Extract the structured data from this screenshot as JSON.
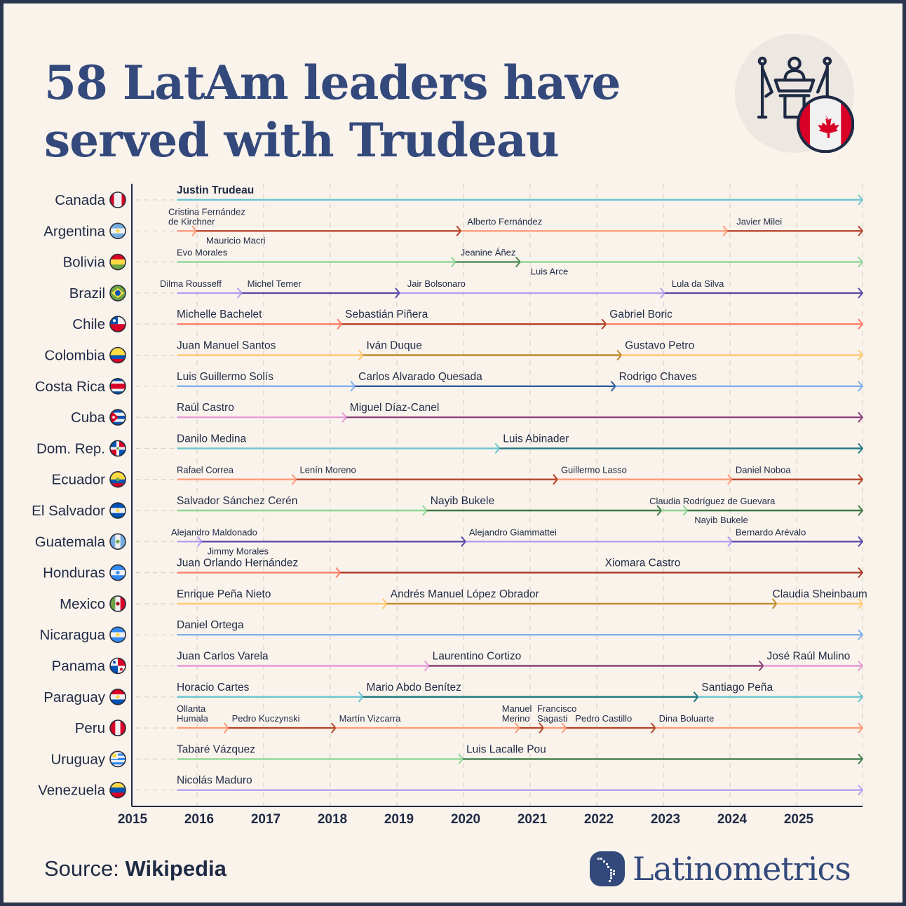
{
  "title": {
    "line1": "58 LatAm leaders have",
    "line2": "served with Trudeau"
  },
  "hero_icon": "podium-with-flags-icon",
  "source": {
    "label": "Source:",
    "value": "Wikipedia"
  },
  "brand": {
    "name": "Latinometrics",
    "icon": "latin-america-map-icon"
  },
  "chart_data": {
    "type": "timeline",
    "xlim": [
      2015,
      2026
    ],
    "x_ticks": [
      "2015",
      "2016",
      "2017",
      "2018",
      "2019",
      "2020",
      "2021",
      "2022",
      "2023",
      "2024",
      "2025"
    ],
    "grid": "vertical dashed",
    "countries": [
      {
        "name": "Canada",
        "flag": "canada-flag-icon",
        "colors": {
          "light": "#6cc5cf",
          "dark": "#217a80"
        },
        "terms": [
          {
            "leader": "Justin Trudeau",
            "start": 2015.7,
            "tone": "light"
          }
        ]
      },
      {
        "name": "Argentina",
        "flag": "argentina-flag-icon",
        "colors": {
          "light": "#ff9a77",
          "dark": "#b5452a"
        },
        "terms": [
          {
            "leader": "Cristina Fernández\nde Kirchner",
            "start": 2015.7,
            "tone": "light"
          },
          {
            "leader": "Mauricio Macri",
            "start": 2015.99,
            "tone": "dark"
          },
          {
            "leader": "Alberto Fernández",
            "start": 2019.96,
            "tone": "light"
          },
          {
            "leader": "Javier Milei",
            "start": 2023.96,
            "tone": "dark"
          }
        ]
      },
      {
        "name": "Bolivia",
        "flag": "bolivia-flag-icon",
        "colors": {
          "light": "#8ed694",
          "dark": "#4e8a55"
        },
        "terms": [
          {
            "leader": "Evo Morales",
            "start": 2015.7,
            "tone": "light"
          },
          {
            "leader": "Jeanine Áñez",
            "start": 2019.88,
            "tone": "dark"
          },
          {
            "leader": "Luis Arce",
            "start": 2020.85,
            "tone": "light"
          }
        ]
      },
      {
        "name": "Brazil",
        "flag": "brazil-flag-icon",
        "colors": {
          "light": "#b3a0ef",
          "dark": "#5a4aa8"
        },
        "terms": [
          {
            "leader": "Dilma Rousseff",
            "start": 2015.7,
            "tone": "light"
          },
          {
            "leader": "Michel Temer",
            "start": 2016.67,
            "tone": "dark"
          },
          {
            "leader": "Jair Bolsonaro",
            "start": 2019.04,
            "tone": "light"
          },
          {
            "leader": "Lula da Silva",
            "start": 2023.02,
            "tone": "dark"
          }
        ]
      },
      {
        "name": "Chile",
        "flag": "chile-flag-icon",
        "colors": {
          "light": "#ff7f6a",
          "dark": "#b5452a"
        },
        "terms": [
          {
            "leader": "Michelle Bachelet",
            "start": 2015.7,
            "tone": "light"
          },
          {
            "leader": "Sebastián Piñera",
            "start": 2018.17,
            "tone": "dark"
          },
          {
            "leader": "Gabriel Boric",
            "start": 2022.14,
            "tone": "light"
          }
        ]
      },
      {
        "name": "Colombia",
        "flag": "colombia-flag-icon",
        "colors": {
          "light": "#ffc870",
          "dark": "#c08a2a"
        },
        "terms": [
          {
            "leader": "Juan Manuel Santos",
            "start": 2015.7,
            "tone": "light"
          },
          {
            "leader": "Iván Duque",
            "start": 2018.49,
            "tone": "dark"
          },
          {
            "leader": "Gustavo Petro",
            "start": 2022.37,
            "tone": "light"
          }
        ]
      },
      {
        "name": "Costa Rica",
        "flag": "costa-rica-flag-icon",
        "colors": {
          "light": "#7fb0e8",
          "dark": "#2f5a9a"
        },
        "terms": [
          {
            "leader": "Luis Guillermo Solís",
            "start": 2015.7,
            "tone": "light"
          },
          {
            "leader": "Carlos Alvarado Quesada",
            "start": 2018.37,
            "tone": "dark"
          },
          {
            "leader": "Rodrigo Chaves",
            "start": 2022.28,
            "tone": "light"
          }
        ]
      },
      {
        "name": "Cuba",
        "flag": "cuba-flag-icon",
        "colors": {
          "light": "#e79ad6",
          "dark": "#8a3f7a"
        },
        "terms": [
          {
            "leader": "Raúl Castro",
            "start": 2015.7,
            "tone": "light"
          },
          {
            "leader": "Miguel Díaz-Canel",
            "start": 2018.24,
            "tone": "dark"
          }
        ]
      },
      {
        "name": "Dom. Rep.",
        "flag": "dominican-republic-flag-icon",
        "colors": {
          "light": "#6cc5cf",
          "dark": "#217a80"
        },
        "terms": [
          {
            "leader": "Danilo Medina",
            "start": 2015.7,
            "tone": "light"
          },
          {
            "leader": "Luis Abinader",
            "start": 2020.54,
            "tone": "dark"
          }
        ]
      },
      {
        "name": "Ecuador",
        "flag": "ecuador-flag-icon",
        "colors": {
          "light": "#ff9a77",
          "dark": "#b5452a"
        },
        "terms": [
          {
            "leader": "Rafael Correa",
            "start": 2015.7,
            "tone": "light"
          },
          {
            "leader": "Lenín Moreno",
            "start": 2017.49,
            "tone": "dark"
          },
          {
            "leader": "Guillermo Lasso",
            "start": 2021.41,
            "tone": "light"
          },
          {
            "leader": "Daniel Noboa",
            "start": 2024.03,
            "tone": "dark"
          }
        ]
      },
      {
        "name": "El Salvador",
        "flag": "el-salvador-flag-icon",
        "colors": {
          "light": "#8ed694",
          "dark": "#3d7a44"
        },
        "terms": [
          {
            "leader": "Salvador Sánchez Cerén",
            "start": 2015.7,
            "tone": "light"
          },
          {
            "leader": "Nayib Bukele",
            "start": 2019.45,
            "tone": "dark"
          },
          {
            "leader": "Claudia Rodríguez de Guevara",
            "start": 2022.97,
            "tone": "light"
          },
          {
            "leader": "Nayib Bukele",
            "start": 2023.36,
            "tone": "dark"
          }
        ]
      },
      {
        "name": "Guatemala",
        "flag": "guatemala-flag-icon",
        "colors": {
          "light": "#b3a0ef",
          "dark": "#5a4aa8"
        },
        "terms": [
          {
            "leader": "Alejandro Maldonado",
            "start": 2015.7,
            "tone": "light"
          },
          {
            "leader": "Jimmy Morales",
            "start": 2016.07,
            "tone": "dark"
          },
          {
            "leader": "Alejandro Giammattei",
            "start": 2020.03,
            "tone": "light"
          },
          {
            "leader": "Bernardo Arévalo",
            "start": 2024.03,
            "tone": "dark"
          }
        ]
      },
      {
        "name": "Honduras",
        "flag": "honduras-flag-icon",
        "colors": {
          "light": "#ff7f6a",
          "dark": "#a83a2a"
        },
        "terms": [
          {
            "leader": "Juan Orlando Hernández",
            "start": 2015.7,
            "tone": "light"
          },
          {
            "leader": "",
            "start": 2018.15,
            "tone": "dark"
          },
          {
            "leader": "Xiomara Castro",
            "start": 2022.07,
            "tone": "dark"
          }
        ]
      },
      {
        "name": "Mexico",
        "flag": "mexico-flag-icon",
        "colors": {
          "light": "#ffc870",
          "dark": "#c08a2a"
        },
        "terms": [
          {
            "leader": "Enrique Peña Nieto",
            "start": 2015.7,
            "tone": "light"
          },
          {
            "leader": "Andrés Manuel López Obrador",
            "start": 2018.85,
            "tone": "dark"
          },
          {
            "leader": "Claudia Sheinbaum",
            "start": 2024.7,
            "tone": "light"
          }
        ]
      },
      {
        "name": "Nicaragua",
        "flag": "nicaragua-flag-icon",
        "colors": {
          "light": "#7fb0e8",
          "dark": "#2f5a9a"
        },
        "terms": [
          {
            "leader": "Daniel Ortega",
            "start": 2015.7,
            "tone": "light"
          }
        ]
      },
      {
        "name": "Panama",
        "flag": "panama-flag-icon",
        "colors": {
          "light": "#e79ad6",
          "dark": "#8a3f7a"
        },
        "terms": [
          {
            "leader": "Juan Carlos Varela",
            "start": 2015.7,
            "tone": "light"
          },
          {
            "leader": "Laurentino Cortizo",
            "start": 2019.48,
            "tone": "dark"
          },
          {
            "leader": "José Raúl Mulino",
            "start": 2024.5,
            "tone": "light"
          }
        ]
      },
      {
        "name": "Paraguay",
        "flag": "paraguay-flag-icon",
        "colors": {
          "light": "#6cc5cf",
          "dark": "#217a80"
        },
        "terms": [
          {
            "leader": "Horacio Cartes",
            "start": 2015.7,
            "tone": "light"
          },
          {
            "leader": "Mario Abdo Benítez",
            "start": 2018.49,
            "tone": "dark"
          },
          {
            "leader": "Santiago Peña",
            "start": 2023.52,
            "tone": "light"
          }
        ]
      },
      {
        "name": "Peru",
        "flag": "peru-flag-icon",
        "colors": {
          "light": "#ff9a77",
          "dark": "#b5452a"
        },
        "terms": [
          {
            "leader": "Ollanta\nHumala",
            "start": 2015.7,
            "tone": "light"
          },
          {
            "leader": "Pedro Kuczynski",
            "start": 2016.47,
            "tone": "dark"
          },
          {
            "leader": "Martín Vizcarra",
            "start": 2018.08,
            "tone": "light"
          },
          {
            "leader": "Manuel\nMerino",
            "start": 2020.84,
            "tone": "dark"
          },
          {
            "leader": "Francisco\nSagasti",
            "start": 2021.2,
            "tone": "light"
          },
          {
            "leader": "Pedro Castillo",
            "start": 2021.54,
            "tone": "dark"
          },
          {
            "leader": "Dina Boluarte",
            "start": 2022.88,
            "tone": "light"
          }
        ]
      },
      {
        "name": "Uruguay",
        "flag": "uruguay-flag-icon",
        "colors": {
          "light": "#8ed694",
          "dark": "#3d7a44"
        },
        "terms": [
          {
            "leader": "Tabaré Vázquez",
            "start": 2015.7,
            "tone": "light"
          },
          {
            "leader": "Luis Lacalle Pou",
            "start": 2019.99,
            "tone": "dark"
          }
        ]
      },
      {
        "name": "Venezuela",
        "flag": "venezuela-flag-icon",
        "colors": {
          "light": "#b3a0ef",
          "dark": "#5a4aa8"
        },
        "terms": [
          {
            "leader": "Nicolás Maduro",
            "start": 2015.7,
            "tone": "light"
          }
        ]
      }
    ]
  }
}
